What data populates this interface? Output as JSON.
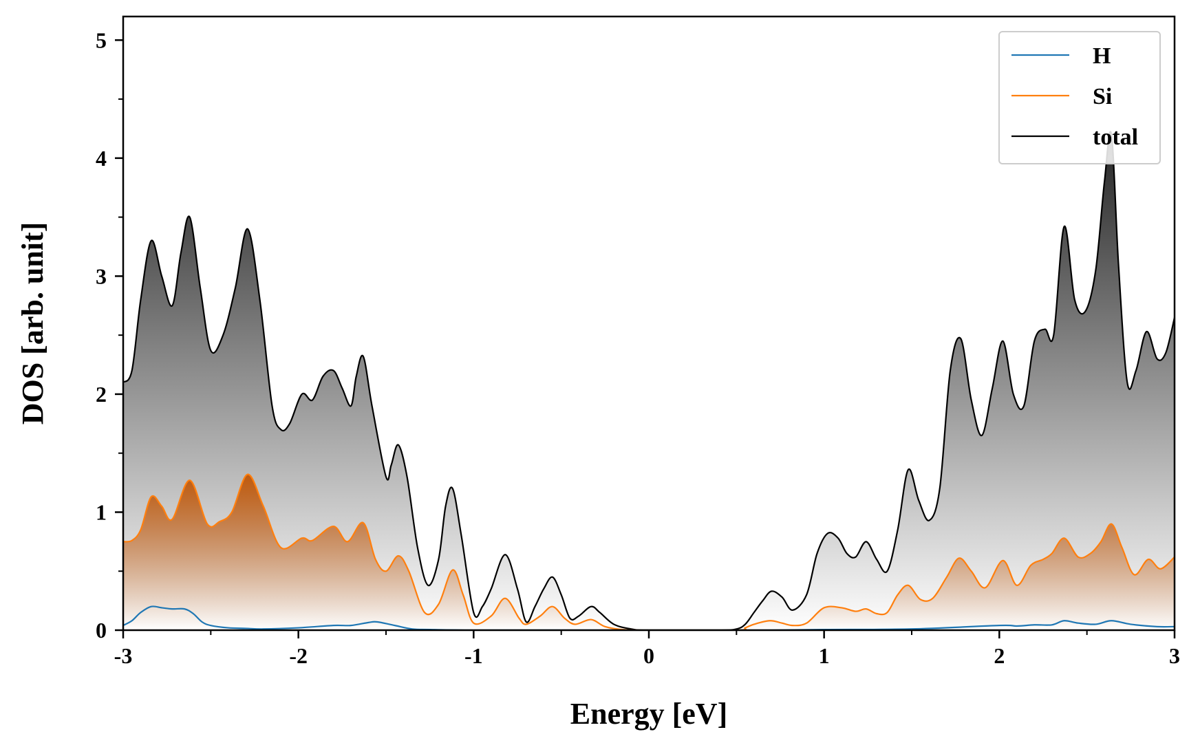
{
  "chart_data": {
    "type": "area",
    "title": "",
    "xlabel": "Energy [eV]",
    "ylabel": "DOS [arb. unit]",
    "xlim": [
      -3,
      3
    ],
    "ylim": [
      0,
      5.2
    ],
    "xticks": [
      -3,
      -2,
      -1,
      0,
      1,
      2,
      3
    ],
    "xtick_labels": [
      "-3",
      "-2",
      "-1",
      "0",
      "1",
      "2",
      "3"
    ],
    "yticks": [
      0,
      1,
      2,
      3,
      4,
      5
    ],
    "ytick_labels": [
      "0",
      "1",
      "2",
      "3",
      "4",
      "5"
    ],
    "legend_position": "top-right",
    "series": [
      {
        "name": "H",
        "color": "#1f77b4",
        "fill": false,
        "x": [
          -3.0,
          -2.95,
          -2.9,
          -2.84,
          -2.78,
          -2.72,
          -2.65,
          -2.6,
          -2.55,
          -2.5,
          -2.4,
          -2.3,
          -2.2,
          -2.0,
          -1.8,
          -1.7,
          -1.6,
          -1.55,
          -1.45,
          -1.35,
          -1.25,
          -1.0,
          -0.5,
          0.0,
          0.5,
          0.7,
          1.0,
          1.5,
          2.0,
          2.1,
          2.2,
          2.3,
          2.37,
          2.45,
          2.55,
          2.64,
          2.75,
          2.9,
          3.0
        ],
        "y": [
          0.04,
          0.08,
          0.15,
          0.2,
          0.19,
          0.18,
          0.18,
          0.14,
          0.07,
          0.04,
          0.02,
          0.015,
          0.01,
          0.02,
          0.04,
          0.04,
          0.065,
          0.07,
          0.04,
          0.01,
          0.005,
          0.0,
          0.0,
          0.0,
          0.0,
          0.0,
          0.005,
          0.01,
          0.04,
          0.035,
          0.045,
          0.045,
          0.08,
          0.06,
          0.05,
          0.08,
          0.05,
          0.03,
          0.03
        ]
      },
      {
        "name": "Si",
        "color": "#ff7f0e",
        "fill": true,
        "fill_color": "#c0580a",
        "x": [
          -3.0,
          -2.95,
          -2.9,
          -2.84,
          -2.78,
          -2.72,
          -2.62,
          -2.52,
          -2.45,
          -2.38,
          -2.29,
          -2.2,
          -2.1,
          -1.98,
          -1.92,
          -1.8,
          -1.72,
          -1.63,
          -1.56,
          -1.5,
          -1.43,
          -1.37,
          -1.28,
          -1.2,
          -1.12,
          -1.06,
          -1.0,
          -0.9,
          -0.82,
          -0.74,
          -0.7,
          -0.62,
          -0.55,
          -0.48,
          -0.42,
          -0.33,
          -0.25,
          -0.15,
          0.0,
          0.5,
          0.55,
          0.6,
          0.69,
          0.76,
          0.82,
          0.9,
          1.0,
          1.1,
          1.18,
          1.24,
          1.3,
          1.36,
          1.42,
          1.48,
          1.55,
          1.62,
          1.7,
          1.77,
          1.84,
          1.92,
          2.02,
          2.1,
          2.18,
          2.25,
          2.3,
          2.37,
          2.45,
          2.52,
          2.58,
          2.64,
          2.7,
          2.77,
          2.85,
          2.92,
          3.0
        ],
        "y": [
          0.75,
          0.76,
          0.85,
          1.13,
          1.05,
          0.94,
          1.27,
          0.9,
          0.92,
          1.0,
          1.32,
          1.05,
          0.7,
          0.78,
          0.76,
          0.88,
          0.75,
          0.91,
          0.6,
          0.5,
          0.63,
          0.5,
          0.15,
          0.22,
          0.51,
          0.3,
          0.06,
          0.12,
          0.27,
          0.1,
          0.05,
          0.12,
          0.2,
          0.1,
          0.05,
          0.09,
          0.03,
          0.005,
          0.0,
          0.0,
          0.02,
          0.05,
          0.08,
          0.06,
          0.04,
          0.06,
          0.19,
          0.19,
          0.16,
          0.18,
          0.14,
          0.15,
          0.3,
          0.38,
          0.26,
          0.27,
          0.45,
          0.61,
          0.5,
          0.36,
          0.59,
          0.38,
          0.55,
          0.6,
          0.65,
          0.78,
          0.62,
          0.65,
          0.75,
          0.9,
          0.7,
          0.47,
          0.6,
          0.52,
          0.62
        ]
      },
      {
        "name": "total",
        "color": "#000000",
        "fill": true,
        "fill_color": "#1f1f1f",
        "x": [
          -3.0,
          -2.95,
          -2.9,
          -2.84,
          -2.78,
          -2.72,
          -2.67,
          -2.62,
          -2.56,
          -2.5,
          -2.43,
          -2.36,
          -2.29,
          -2.22,
          -2.15,
          -2.1,
          -2.05,
          -1.98,
          -1.92,
          -1.86,
          -1.8,
          -1.75,
          -1.7,
          -1.67,
          -1.63,
          -1.58,
          -1.5,
          -1.47,
          -1.43,
          -1.38,
          -1.32,
          -1.26,
          -1.2,
          -1.16,
          -1.12,
          -1.07,
          -1.0,
          -0.95,
          -0.9,
          -0.82,
          -0.75,
          -0.7,
          -0.65,
          -0.6,
          -0.55,
          -0.5,
          -0.45,
          -0.4,
          -0.33,
          -0.28,
          -0.2,
          -0.1,
          0.0,
          0.4,
          0.5,
          0.55,
          0.6,
          0.65,
          0.7,
          0.76,
          0.82,
          0.9,
          0.96,
          1.02,
          1.08,
          1.13,
          1.18,
          1.24,
          1.3,
          1.36,
          1.42,
          1.48,
          1.54,
          1.6,
          1.66,
          1.72,
          1.78,
          1.84,
          1.9,
          1.96,
          2.02,
          2.08,
          2.14,
          2.2,
          2.26,
          2.31,
          2.37,
          2.43,
          2.49,
          2.55,
          2.6,
          2.64,
          2.68,
          2.73,
          2.78,
          2.84,
          2.9,
          2.95,
          3.0
        ],
        "y": [
          2.1,
          2.2,
          2.8,
          3.3,
          3.0,
          2.75,
          3.2,
          3.5,
          2.9,
          2.37,
          2.5,
          2.9,
          3.4,
          2.8,
          1.9,
          1.7,
          1.75,
          2.0,
          1.95,
          2.15,
          2.2,
          2.05,
          1.9,
          2.15,
          2.32,
          1.9,
          1.3,
          1.4,
          1.57,
          1.3,
          0.7,
          0.38,
          0.6,
          1.05,
          1.2,
          0.8,
          0.15,
          0.2,
          0.35,
          0.64,
          0.35,
          0.07,
          0.2,
          0.35,
          0.45,
          0.3,
          0.1,
          0.12,
          0.2,
          0.15,
          0.05,
          0.01,
          0.0,
          0.0,
          0.01,
          0.05,
          0.15,
          0.25,
          0.33,
          0.28,
          0.17,
          0.3,
          0.65,
          0.82,
          0.78,
          0.65,
          0.62,
          0.75,
          0.6,
          0.5,
          0.85,
          1.36,
          1.1,
          0.93,
          1.2,
          2.2,
          2.47,
          1.95,
          1.65,
          2.05,
          2.45,
          2.0,
          1.9,
          2.45,
          2.55,
          2.5,
          3.42,
          2.8,
          2.7,
          3.05,
          3.8,
          4.2,
          3.1,
          2.1,
          2.2,
          2.53,
          2.3,
          2.35,
          2.65
        ]
      }
    ]
  }
}
